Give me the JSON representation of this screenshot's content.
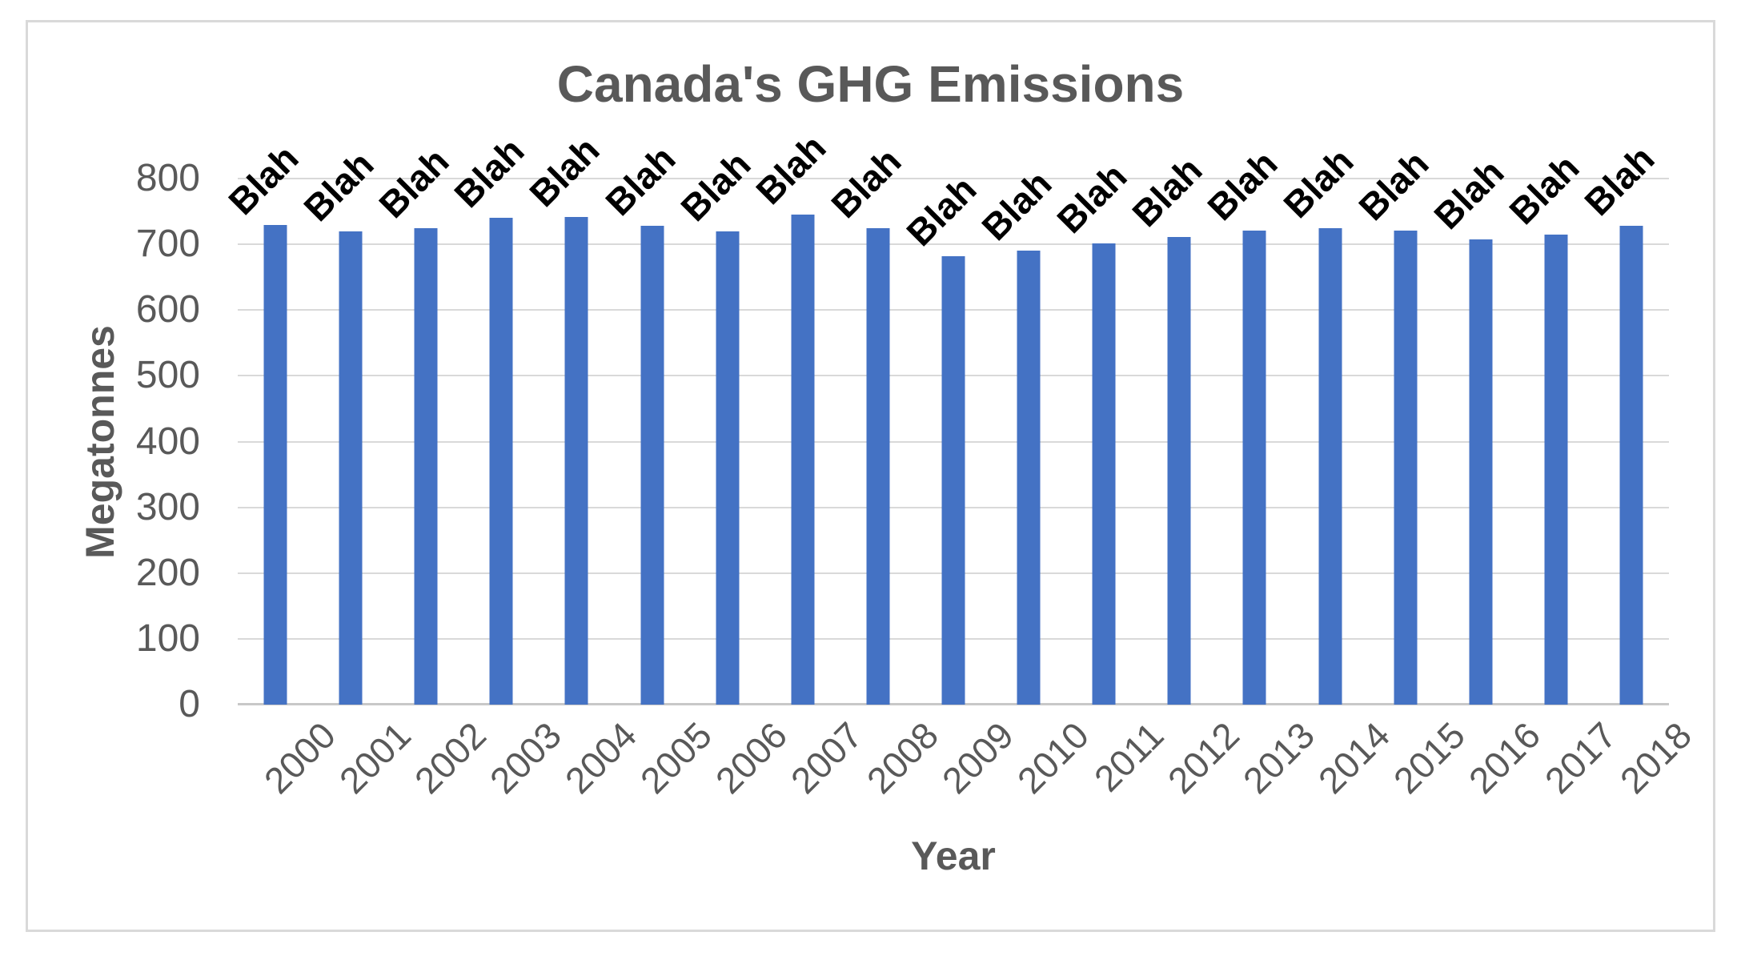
{
  "chart_data": {
    "type": "bar",
    "title": "Canada's GHG Emissions",
    "xlabel": "Year",
    "ylabel": "Megatonnes",
    "categories": [
      "2000",
      "2001",
      "2002",
      "2003",
      "2004",
      "2005",
      "2006",
      "2007",
      "2008",
      "2009",
      "2010",
      "2011",
      "2012",
      "2013",
      "2014",
      "2015",
      "2016",
      "2017",
      "2018"
    ],
    "values": [
      729,
      720,
      724,
      741,
      742,
      728,
      720,
      745,
      725,
      682,
      690,
      702,
      711,
      721,
      725,
      721,
      707,
      715,
      728
    ],
    "bar_labels": [
      "Blah",
      "Blah",
      "Blah",
      "Blah",
      "Blah",
      "Blah",
      "Blah",
      "Blah",
      "Blah",
      "Blah",
      "Blah",
      "Blah",
      "Blah",
      "Blah",
      "Blah",
      "Blah",
      "Blah",
      "Blah",
      "Blah"
    ],
    "ylim": [
      0,
      800
    ],
    "yticks": [
      0,
      100,
      200,
      300,
      400,
      500,
      600,
      700,
      800
    ],
    "grid": "horizontal",
    "legend": "none",
    "bar_color": "#4472c4",
    "gridline_color": "#d9d9d9",
    "axis_text_color": "#595959",
    "data_label_color": "#000000"
  }
}
